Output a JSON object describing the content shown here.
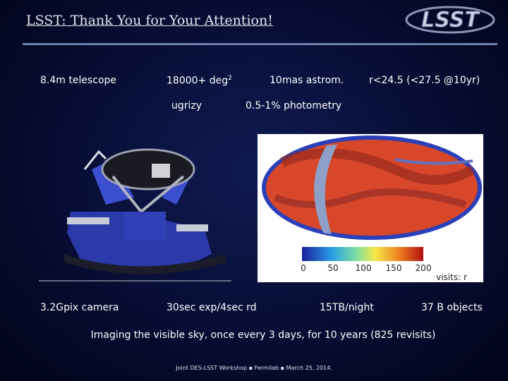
{
  "header": {
    "title": "LSST: Thank You for Your Attention!",
    "logo": "LSST"
  },
  "facts": {
    "row1": [
      {
        "text": "8.4m telescope"
      },
      {
        "text": "18000+ deg",
        "sup": "2"
      },
      {
        "text": "10mas astrom."
      },
      {
        "text": "r<24.5 (<27.5 @10yr)"
      }
    ],
    "row2": [
      {
        "text": "ugrizy"
      },
      {
        "text": "0.5-1% photometry"
      }
    ],
    "row3": [
      {
        "text": "3.2Gpix camera"
      },
      {
        "text": "30sec exp/4sec rd"
      },
      {
        "text": "15TB/night"
      },
      {
        "text": "37 B objects"
      }
    ]
  },
  "skymap": {
    "colorbar_ticks": [
      0,
      50,
      100,
      150,
      200
    ],
    "caption": "visits: r"
  },
  "summary": "Imaging the visible sky, once every 3 days, for 10 years (825 revisits)",
  "footer": "Joint DES-LSST Workshop ▪ Fermilab ▪ March 25, 2014."
}
